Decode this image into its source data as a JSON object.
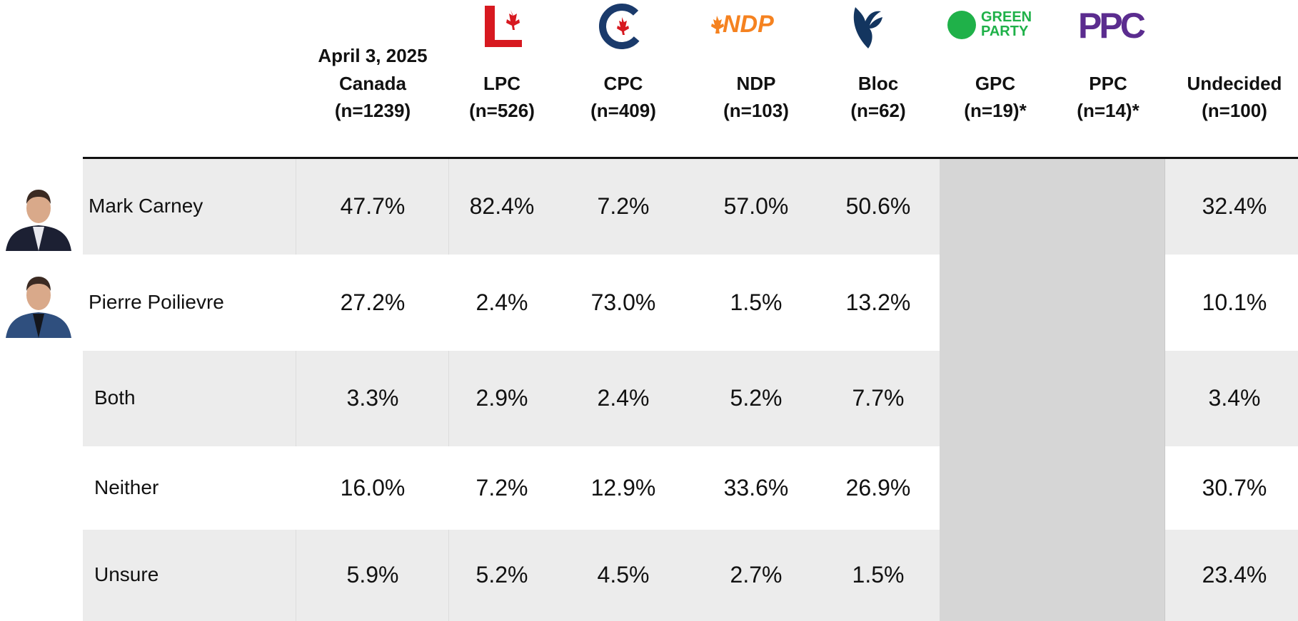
{
  "header": {
    "columns": [
      {
        "date": "April 3, 2025",
        "name": "Canada",
        "n": "(n=1239)"
      },
      {
        "name": "LPC",
        "n": "(n=526)"
      },
      {
        "name": "CPC",
        "n": "(n=409)"
      },
      {
        "name": "NDP",
        "n": "(n=103)",
        "logo_text": [
          "NDP"
        ]
      },
      {
        "name": "Bloc",
        "n": "(n=62)"
      },
      {
        "name": "GPC",
        "n": "(n=19)*",
        "logo_text": [
          "GREEN",
          "PARTY"
        ]
      },
      {
        "name": "PPC",
        "n": "(n=14)*",
        "logo_text": [
          "PPC"
        ]
      },
      {
        "name": "Undecided",
        "n": "(n=100)"
      }
    ]
  },
  "table": {
    "rows": [
      {
        "label": "Mark Carney",
        "values": [
          "47.7%",
          "82.4%",
          "7.2%",
          "57.0%",
          "50.6%",
          null,
          null,
          "32.4%"
        ]
      },
      {
        "label": "Pierre Poilievre",
        "values": [
          "27.2%",
          "2.4%",
          "73.0%",
          "1.5%",
          "13.2%",
          null,
          null,
          "10.1%"
        ]
      },
      {
        "label": "Both",
        "values": [
          "3.3%",
          "2.9%",
          "2.4%",
          "5.2%",
          "7.7%",
          null,
          null,
          "3.4%"
        ]
      },
      {
        "label": "Neither",
        "values": [
          "16.0%",
          "7.2%",
          "12.9%",
          "33.6%",
          "26.9%",
          null,
          null,
          "30.7%"
        ]
      },
      {
        "label": "Unsure",
        "values": [
          "5.9%",
          "5.2%",
          "4.5%",
          "2.7%",
          "1.5%",
          null,
          null,
          "23.4%"
        ]
      }
    ]
  }
}
